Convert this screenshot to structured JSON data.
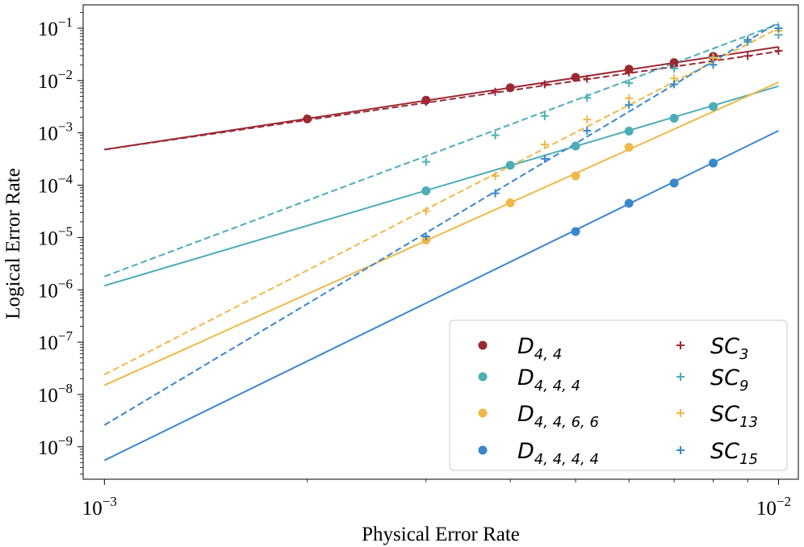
{
  "chart_data": {
    "type": "scatter",
    "xlabel": "Physical Error Rate",
    "ylabel": "Logical Error Rate",
    "xscale": "log",
    "yscale": "log",
    "xlim": [
      0.00093,
      0.0107
    ],
    "ylim": [
      2.4e-10,
      0.28
    ],
    "x_ticks": [
      {
        "value": 0.001,
        "base": "10",
        "exp": "−3"
      },
      {
        "value": 0.01,
        "base": "10",
        "exp": "−2"
      }
    ],
    "y_ticks": [
      {
        "value": 1e-09,
        "base": "10",
        "exp": "−9"
      },
      {
        "value": 1e-08,
        "base": "10",
        "exp": "−8"
      },
      {
        "value": 1e-07,
        "base": "10",
        "exp": "−7"
      },
      {
        "value": 1e-06,
        "base": "10",
        "exp": "−6"
      },
      {
        "value": 1e-05,
        "base": "10",
        "exp": "−5"
      },
      {
        "value": 0.0001,
        "base": "10",
        "exp": "−4"
      },
      {
        "value": 0.001,
        "base": "10",
        "exp": "−3"
      },
      {
        "value": 0.01,
        "base": "10",
        "exp": "−2"
      },
      {
        "value": 0.1,
        "base": "10",
        "exp": "−1"
      }
    ],
    "legend_position": "lower-right",
    "series": [
      {
        "name": "D_{4,4}",
        "label_main": "D",
        "label_sub": "4, 4",
        "color": "#9b2a35",
        "marker": "circle",
        "line": "solid",
        "points": [
          [
            0.002,
            0.00185
          ],
          [
            0.003,
            0.0042
          ],
          [
            0.004,
            0.0073
          ],
          [
            0.005,
            0.0115
          ],
          [
            0.006,
            0.0165
          ],
          [
            0.007,
            0.022
          ],
          [
            0.008,
            0.029
          ]
        ],
        "fit": [
          [
            0.001,
            0.00048
          ],
          [
            0.01,
            0.044
          ]
        ]
      },
      {
        "name": "D_{4,4,4}",
        "label_main": "D",
        "label_sub": "4, 4, 4",
        "color": "#4cadb6",
        "marker": "circle",
        "line": "solid",
        "points": [
          [
            0.003,
            7.8e-05
          ],
          [
            0.004,
            0.00024
          ],
          [
            0.005,
            0.00056
          ],
          [
            0.006,
            0.00108
          ],
          [
            0.007,
            0.0019
          ],
          [
            0.008,
            0.0032
          ]
        ],
        "fit": [
          [
            0.001,
            1.2e-06
          ],
          [
            0.01,
            0.0078
          ]
        ]
      },
      {
        "name": "D_{4,4,6,6}",
        "label_main": "D",
        "label_sub": "4, 4, 6, 6",
        "color": "#efb84a",
        "marker": "circle",
        "line": "solid",
        "points": [
          [
            0.003,
            9e-06
          ],
          [
            0.004,
            4.6e-05
          ],
          [
            0.005,
            0.00015
          ],
          [
            0.006,
            0.00053
          ]
        ],
        "fit": [
          [
            0.001,
            1.5e-08
          ],
          [
            0.01,
            0.0093
          ]
        ]
      },
      {
        "name": "D_{4,4,4,4}",
        "label_main": "D",
        "label_sub": "4, 4, 4, 4",
        "color": "#3a86cc",
        "marker": "circle",
        "line": "solid",
        "points": [
          [
            0.005,
            1.3e-05
          ],
          [
            0.006,
            4.5e-05
          ],
          [
            0.007,
            0.00011
          ],
          [
            0.008,
            0.000265
          ]
        ],
        "fit": [
          [
            0.001,
            5.5e-10
          ],
          [
            0.01,
            0.0011
          ]
        ]
      },
      {
        "name": "SC_3",
        "label_main": "SC",
        "label_sub": "3",
        "color": "#9b2a35",
        "marker": "plus",
        "line": "dashed",
        "points": [
          [
            0.003,
            0.0039
          ],
          [
            0.0038,
            0.0061
          ],
          [
            0.0045,
            0.0085
          ],
          [
            0.0052,
            0.0108
          ],
          [
            0.006,
            0.0143
          ],
          [
            0.007,
            0.0188
          ],
          [
            0.008,
            0.026
          ],
          [
            0.009,
            0.0295
          ],
          [
            0.01,
            0.037
          ]
        ],
        "fit": [
          [
            0.001,
            0.00048
          ],
          [
            0.01,
            0.036
          ]
        ]
      },
      {
        "name": "SC_9",
        "label_main": "SC",
        "label_sub": "9",
        "color": "#4cadb6",
        "marker": "plus",
        "line": "dashed",
        "points": [
          [
            0.003,
            0.00028
          ],
          [
            0.0038,
            0.0009
          ],
          [
            0.0045,
            0.0021
          ],
          [
            0.0052,
            0.0047
          ],
          [
            0.006,
            0.009
          ],
          [
            0.007,
            0.017
          ],
          [
            0.008,
            0.028
          ],
          [
            0.009,
            0.055
          ],
          [
            0.01,
            0.075
          ]
        ],
        "fit": [
          [
            0.001,
            1.8e-06
          ],
          [
            0.01,
            0.12
          ]
        ]
      },
      {
        "name": "SC_13",
        "label_main": "SC",
        "label_sub": "13",
        "color": "#efb84a",
        "marker": "plus",
        "line": "dashed",
        "points": [
          [
            0.003,
            3.2e-05
          ],
          [
            0.0038,
            0.00015
          ],
          [
            0.0045,
            0.0006
          ],
          [
            0.0052,
            0.0018
          ],
          [
            0.006,
            0.0046
          ],
          [
            0.007,
            0.011
          ],
          [
            0.008,
            0.027
          ],
          [
            0.009,
            0.06
          ],
          [
            0.01,
            0.09
          ]
        ],
        "fit": [
          [
            0.001,
            2.4e-08
          ],
          [
            0.01,
            0.1
          ]
        ]
      },
      {
        "name": "SC_15",
        "label_main": "SC",
        "label_sub": "15",
        "color": "#3a86cc",
        "marker": "plus",
        "line": "dashed",
        "points": [
          [
            0.003,
            1.05e-05
          ],
          [
            0.0038,
            7e-05
          ],
          [
            0.0045,
            0.00032
          ],
          [
            0.0052,
            0.0011
          ],
          [
            0.006,
            0.0034
          ],
          [
            0.007,
            0.0085
          ],
          [
            0.008,
            0.02
          ],
          [
            0.009,
            0.06
          ],
          [
            0.01,
            0.1
          ]
        ],
        "fit": [
          [
            0.001,
            2.6e-09
          ],
          [
            0.01,
            0.13
          ]
        ]
      }
    ]
  }
}
